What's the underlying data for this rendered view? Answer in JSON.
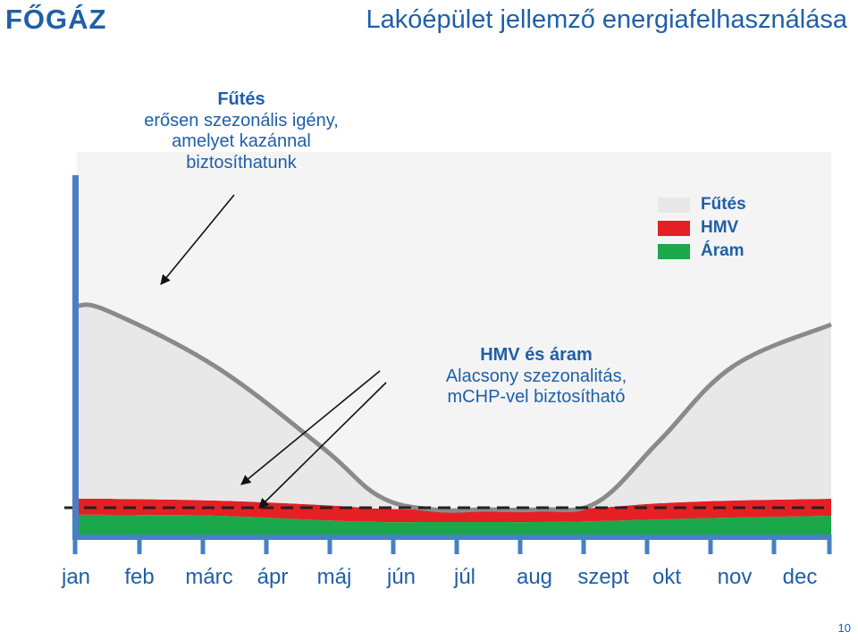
{
  "header": {
    "logo": "FŐGÁZ",
    "title": "Lakóépület jellemző energiafelhasználása"
  },
  "annotations": {
    "heating": {
      "heading": "Fűtés",
      "lines": [
        "erősen szezonális igény,",
        "amelyet kazánnal",
        "biztosíthatunk"
      ]
    },
    "hmv_power": {
      "heading": "HMV és áram",
      "lines": [
        "Alacsony szezonalitás,",
        "mCHP-vel biztosítható"
      ]
    }
  },
  "footer": {
    "page_number": "10"
  },
  "colors": {
    "heating": "#e8e8e8",
    "heating_line": "#8a8a8a",
    "hmv": "#e42025",
    "power": "#1aa84a",
    "axis": "#4a7fc7",
    "text": "#1f5fa8"
  },
  "chart_data": {
    "type": "area",
    "stacked": true,
    "categories": [
      "jan",
      "feb",
      "márc",
      "ápr",
      "máj",
      "jún",
      "júl",
      "aug",
      "szept",
      "okt",
      "nov",
      "dec"
    ],
    "series": [
      {
        "name": "Áram",
        "color": "#1aa84a",
        "values": [
          22,
          22,
          21,
          16,
          14,
          14,
          14,
          14,
          15,
          17,
          19,
          21
        ]
      },
      {
        "name": "HMV",
        "color": "#e42025",
        "values": [
          18,
          18,
          17,
          17,
          15,
          14,
          14,
          14,
          15,
          18,
          19,
          19
        ]
      },
      {
        "name": "Fűtés",
        "color": "#e8e8e8",
        "values": [
          216,
          210,
          150,
          64,
          14,
          0,
          0,
          0,
          6,
          70,
          150,
          195
        ]
      }
    ],
    "legend": [
      "Fűtés",
      "HMV",
      "Áram"
    ],
    "legend_position": "top-right",
    "baseline_dashed": true,
    "ylim": [
      0,
      300
    ],
    "xlabel": "",
    "ylabel": ""
  }
}
